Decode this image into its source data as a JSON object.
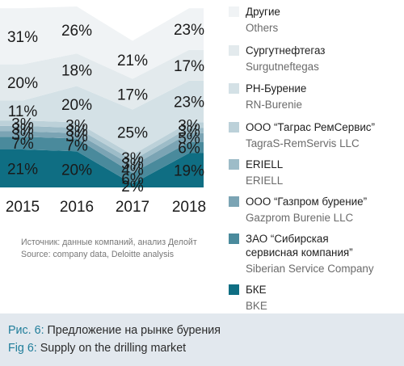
{
  "chart_data": {
    "type": "area",
    "stacked": true,
    "normalized_percent": true,
    "x": [
      "2015",
      "2016",
      "2017",
      "2018"
    ],
    "series": [
      {
        "name": "БКЕ / BKE",
        "color": "#0f6e83",
        "values": [
          21,
          20,
          2,
          19
        ],
        "labels": [
          "21%",
          "20%",
          "2%",
          "19%"
        ]
      },
      {
        "name": "ЗАО “Сибирская сервисная компания” / Siberian Service Company",
        "color": "#4a8a9c",
        "values": [
          7,
          7,
          6,
          6
        ],
        "labels": [
          "7%",
          "7%",
          "6%",
          "6%"
        ]
      },
      {
        "name": "ООО “Газпром бурение” / Gazprom Burenie LLC",
        "color": "#7ba4b4",
        "values": [
          3,
          3,
          4,
          5
        ],
        "labels": [
          "3%",
          "3%",
          "4%",
          "5%"
        ]
      },
      {
        "name": "ERIELL / ERIELL",
        "color": "#9dbcc8",
        "values": [
          3,
          3,
          3,
          3
        ],
        "labels": [
          "3%",
          "3%",
          "3%",
          "3%"
        ]
      },
      {
        "name": "ООО “Таграс РемСервис” / TagraS-RemServis LLC",
        "color": "#bcd1d9",
        "values": [
          3,
          3,
          3,
          3
        ],
        "labels": [
          "3%",
          "3%",
          "3%",
          "3%"
        ]
      },
      {
        "name": "РН-Бурение / RN-Burenie",
        "color": "#d4e1e6",
        "values": [
          11,
          20,
          25,
          23
        ],
        "labels": [
          "11%",
          "20%",
          "25%",
          "23%"
        ]
      },
      {
        "name": "Сургутнефтегаз / Surgutneftegas",
        "color": "#e3eaed",
        "values": [
          20,
          18,
          17,
          17
        ],
        "labels": [
          "20%",
          "18%",
          "17%",
          "17%"
        ]
      },
      {
        "name": "Другие / Others",
        "color": "#f0f3f5",
        "values": [
          31,
          26,
          21,
          23
        ],
        "labels": [
          "31%",
          "26%",
          "21%",
          "23%"
        ]
      }
    ]
  },
  "legend": [
    {
      "ru": "Другие",
      "en": "Others",
      "color": "#f0f3f5"
    },
    {
      "ru": "Сургутнефтегаз",
      "en": "Surgutneftegas",
      "color": "#e3eaed"
    },
    {
      "ru": "РН-Бурение",
      "en": "RN-Burenie",
      "color": "#d4e1e6"
    },
    {
      "ru": "ООО “Таграс РемСервис”",
      "en": "TagraS-RemServis LLC",
      "color": "#bcd1d9"
    },
    {
      "ru": "ERIELL",
      "en": "ERIELL",
      "color": "#9dbcc8"
    },
    {
      "ru": "ООО “Газпром бурение”",
      "en": "Gazprom Burenie LLC",
      "color": "#7ba4b4"
    },
    {
      "ru": "ЗАО “Сибирская",
      "ru2": "сервисная компания”",
      "en": "Siberian Service Company",
      "color": "#4a8a9c"
    },
    {
      "ru": "БКЕ",
      "en": "BKE",
      "color": "#0f6e83"
    }
  ],
  "source": {
    "ru": "Источник: данные компаний, анализ Делойт",
    "en": "Source: company data, Deloitte analysis"
  },
  "caption": {
    "ru_prefix": "Рис. 6:",
    "ru_text": " Предложение на рынке бурения",
    "en_prefix": "Fig 6:",
    "en_text": " Supply on the drilling market"
  }
}
